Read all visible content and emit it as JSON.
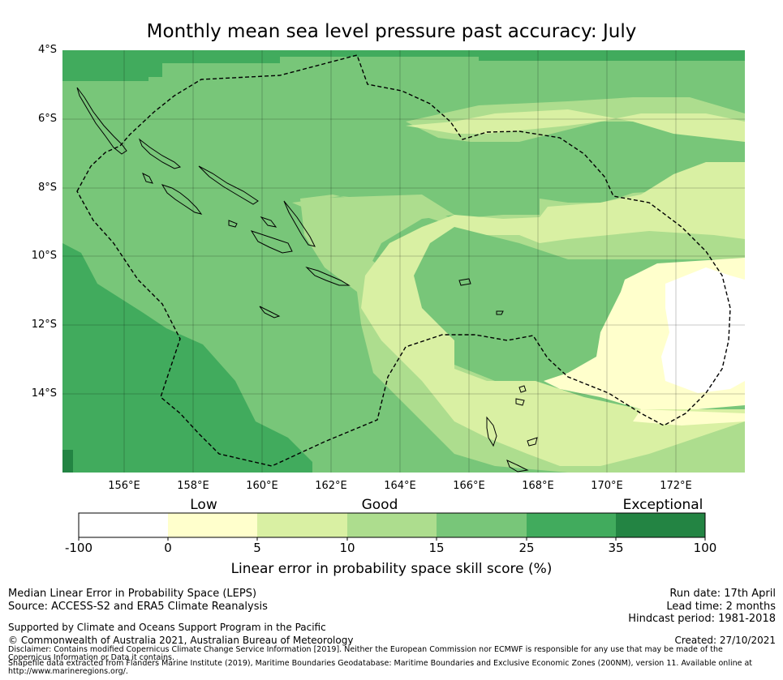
{
  "title": "Monthly mean sea level pressure past accuracy: July",
  "map": {
    "lat_labels": [
      "4°S",
      "6°S",
      "8°S",
      "10°S",
      "12°S",
      "14°S"
    ],
    "lon_labels": [
      "156°E",
      "158°E",
      "160°E",
      "162°E",
      "164°E",
      "166°E",
      "168°E",
      "170°E",
      "172°E"
    ],
    "lon_range": [
      154.2,
      174.0
    ],
    "lat_range": [
      -16.3,
      -4.0
    ]
  },
  "legend": {
    "category_labels": [
      "Low",
      "Good",
      "Exceptional"
    ],
    "tick_labels": [
      "-100",
      "0",
      "5",
      "10",
      "15",
      "25",
      "35",
      "100"
    ],
    "bins": [
      {
        "range": "-100 to 0",
        "color": "#ffffff"
      },
      {
        "range": "0 to 5",
        "color": "#ffffcc"
      },
      {
        "range": "5 to 10",
        "color": "#d9f0a3"
      },
      {
        "range": "10 to 15",
        "color": "#addd8e"
      },
      {
        "range": "15 to 25",
        "color": "#78c679"
      },
      {
        "range": "25 to 35",
        "color": "#41ab5d"
      },
      {
        "range": "35 to 100",
        "color": "#238443"
      }
    ],
    "title": "Linear error in probability space skill score (%)"
  },
  "footer": {
    "line1": "Median Linear Error in Probability Space (LEPS)",
    "line2": "Source: ACCESS-S2 and ERA5 Climate Reanalysis",
    "run_date": "Run date: 17th April",
    "lead_time": "Lead time: 2 months",
    "hindcast": "Hindcast period: 1981-2018",
    "supported": "Supported by Climate and Oceans Support Program in the Pacific",
    "copyright": "© Commonwealth of Australia 2021, Australian Bureau of Meteorology",
    "created": "Created: 27/10/2021",
    "disclaimer1": "Disclaimer: Contains modified Copernicus Climate Change Service Information [2019]. Neither the European Commission nor ECMWF is responsible for any use that may be made of the Copernicus Information or Data it contains.",
    "disclaimer2": "Shapefile data extracted from Flanders Marine Institute (2019), Maritime Boundaries Geodatabase: Maritime Boundaries and Exclusive Economic Zones (200NM), version 11. Available online at http://www.marineregions.org/."
  }
}
